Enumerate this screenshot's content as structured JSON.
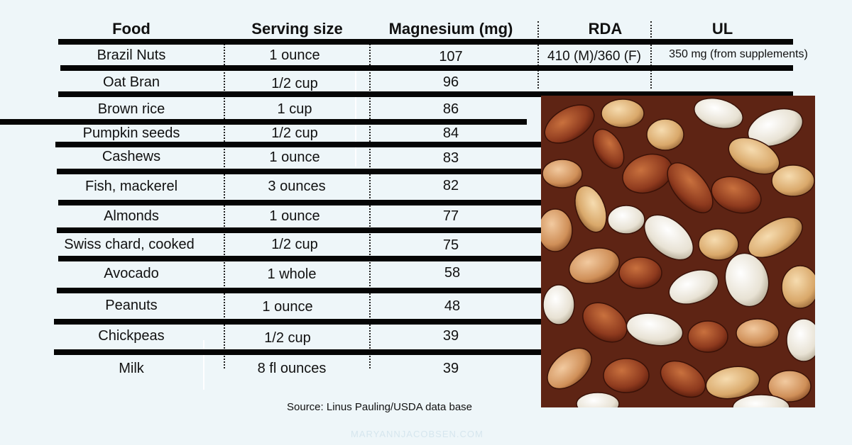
{
  "table": {
    "headers": {
      "food": "Food",
      "serving": "Serving size",
      "magnesium": "Magnesium (mg)",
      "rda": "RDA",
      "ul": "UL"
    },
    "rows": [
      {
        "food": "Brazil Nuts",
        "serving": "1 ounce",
        "mg": "107"
      },
      {
        "food": "Oat Bran",
        "serving": "1/2 cup",
        "mg": "96"
      },
      {
        "food": "Brown rice",
        "serving": "1 cup",
        "mg": "86"
      },
      {
        "food": "Pumpkin seeds",
        "serving": "1/2 cup",
        "mg": "84"
      },
      {
        "food": "Cashews",
        "serving": "1 ounce",
        "mg": "83"
      },
      {
        "food": "Fish, mackerel",
        "serving": "3 ounces",
        "mg": "82"
      },
      {
        "food": "Almonds",
        "serving": "1 ounce",
        "mg": "77"
      },
      {
        "food": "Swiss chard, cooked",
        "serving": "1/2 cup",
        "mg": "75"
      },
      {
        "food": "Avocado",
        "serving": "1 whole",
        "mg": "58"
      },
      {
        "food": "Peanuts",
        "serving": "1 ounce",
        "mg": "48"
      },
      {
        "food": "Chickpeas",
        "serving": "1/2 cup",
        "mg": "39"
      },
      {
        "food": "Milk",
        "serving": "8 fl ounces",
        "mg": "39"
      }
    ],
    "rda_value": "410 (M)/360 (F)",
    "ul_value": "350 mg (from supplements)"
  },
  "source": "Source: Linus Pauling/USDA data base",
  "watermark": "MARYANNJACOBSEN.COM",
  "photo": {
    "subject": "mixed-nuts-photo"
  },
  "colors": {
    "background": "#eef6f9",
    "rules": "#050505"
  }
}
